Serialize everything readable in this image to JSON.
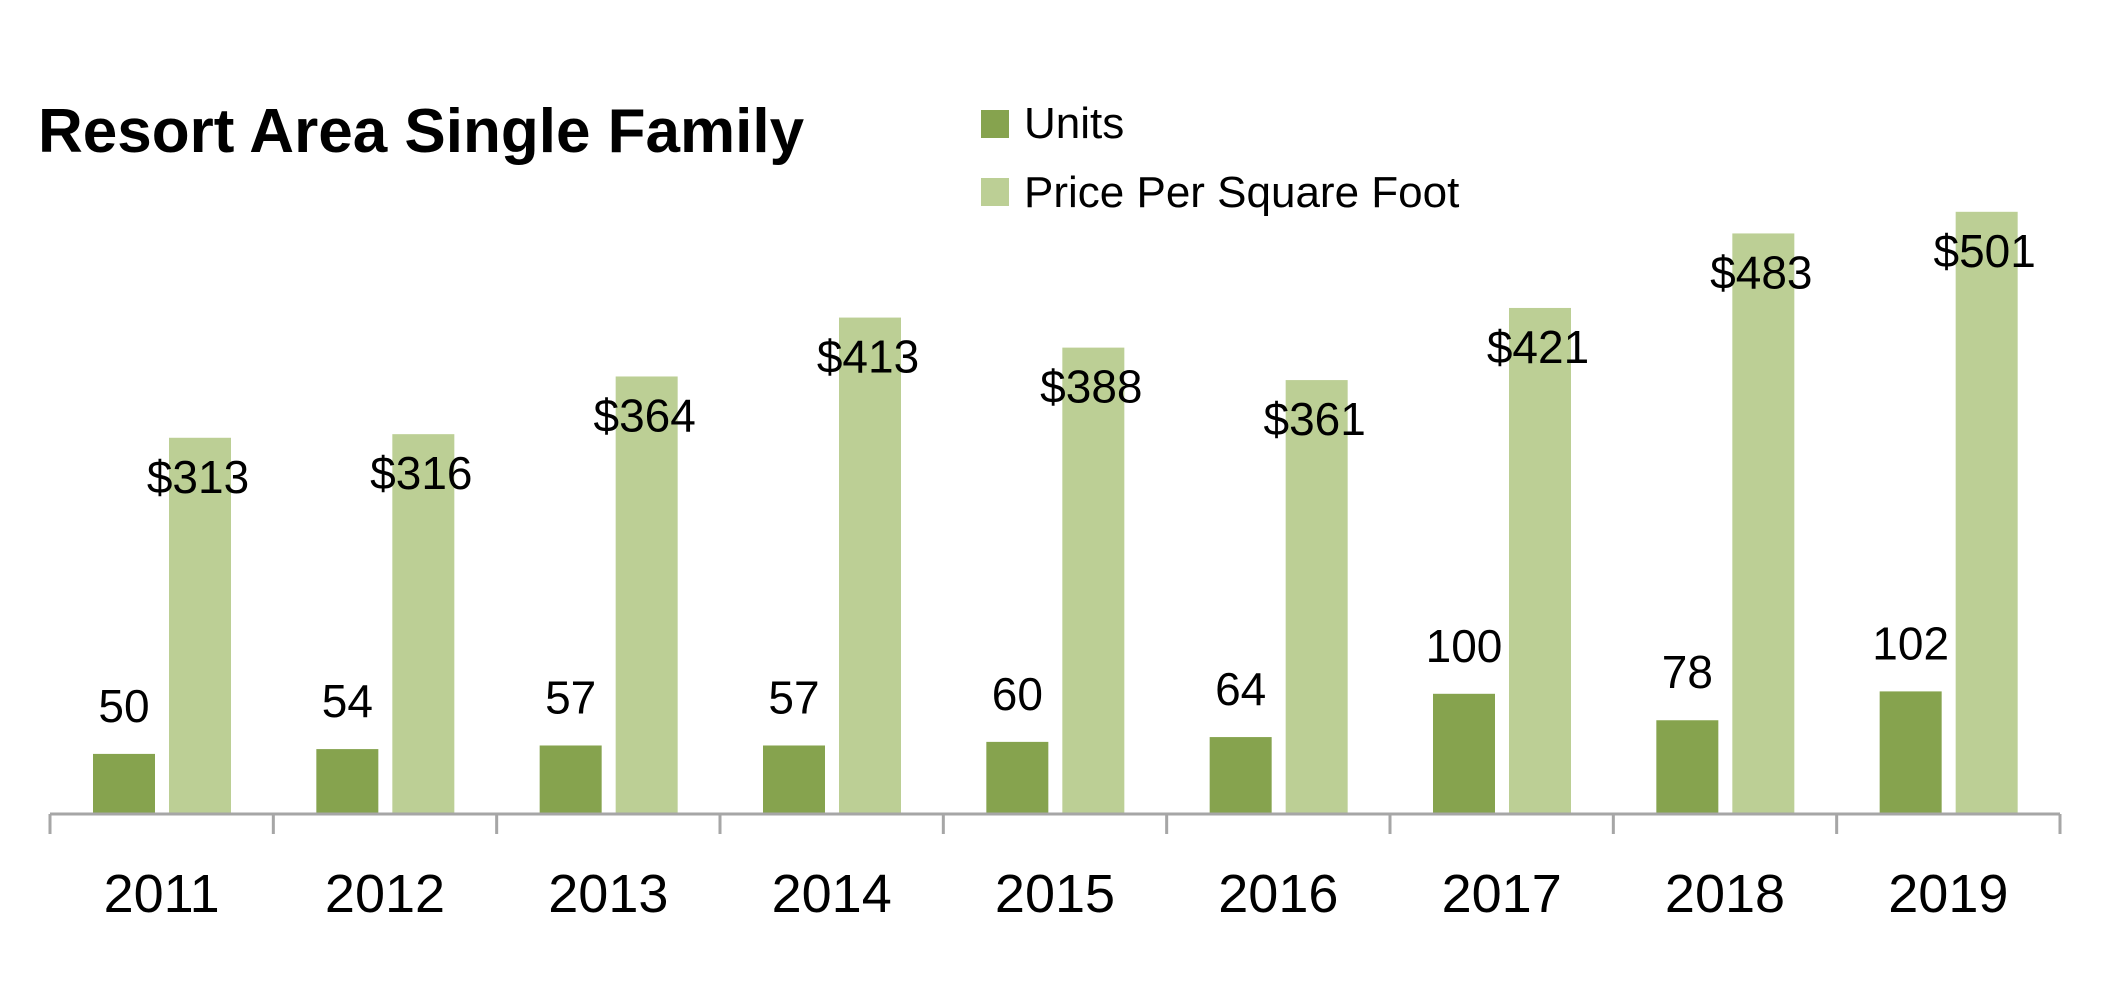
{
  "chart_data": {
    "type": "bar",
    "title": "Resort Area Single Family",
    "xlabel": "",
    "ylabel": "",
    "categories": [
      "2011",
      "2012",
      "2013",
      "2014",
      "2015",
      "2016",
      "2017",
      "2018",
      "2019"
    ],
    "series": [
      {
        "name": "Units",
        "color": "#86a34e",
        "values": [
          50,
          54,
          57,
          57,
          60,
          64,
          100,
          78,
          102
        ],
        "labels": [
          "50",
          "54",
          "57",
          "57",
          "60",
          "64",
          "100",
          "78",
          "102"
        ]
      },
      {
        "name": "Price Per Square Foot",
        "color": "#bccf95",
        "values": [
          313,
          316,
          364,
          413,
          388,
          361,
          421,
          483,
          501
        ],
        "labels": [
          "$313",
          "$316",
          "$364",
          "$413",
          "$388",
          "$361",
          "$421",
          "$483",
          "$501"
        ]
      }
    ],
    "legend_position": "top",
    "grid": false,
    "axis_color": "#a6a6a6"
  }
}
